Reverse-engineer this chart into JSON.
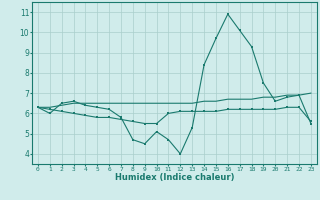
{
  "xlabel": "Humidex (Indice chaleur)",
  "x": [
    0,
    1,
    2,
    3,
    4,
    5,
    6,
    7,
    8,
    9,
    10,
    11,
    12,
    13,
    14,
    15,
    16,
    17,
    18,
    19,
    20,
    21,
    22,
    23
  ],
  "line1": [
    6.3,
    6.0,
    6.5,
    6.6,
    6.4,
    6.3,
    6.2,
    5.8,
    4.7,
    4.5,
    5.1,
    4.7,
    4.0,
    5.3,
    8.4,
    9.7,
    10.9,
    10.1,
    9.3,
    7.5,
    6.6,
    6.8,
    6.9,
    5.5
  ],
  "line2": [
    6.3,
    6.3,
    6.4,
    6.5,
    6.5,
    6.5,
    6.5,
    6.5,
    6.5,
    6.5,
    6.5,
    6.5,
    6.5,
    6.5,
    6.6,
    6.6,
    6.7,
    6.7,
    6.7,
    6.8,
    6.8,
    6.9,
    6.9,
    7.0
  ],
  "line3": [
    6.3,
    6.2,
    6.1,
    6.0,
    5.9,
    5.8,
    5.8,
    5.7,
    5.6,
    5.5,
    5.5,
    6.0,
    6.1,
    6.1,
    6.1,
    6.1,
    6.2,
    6.2,
    6.2,
    6.2,
    6.2,
    6.3,
    6.3,
    5.6
  ],
  "line_color": "#1a7a6e",
  "bg_color": "#d0eceb",
  "grid_color": "#aacfcc",
  "ylim": [
    3.5,
    11.5
  ],
  "yticks": [
    4,
    5,
    6,
    7,
    8,
    9,
    10,
    11
  ],
  "xlim": [
    -0.5,
    23.5
  ]
}
